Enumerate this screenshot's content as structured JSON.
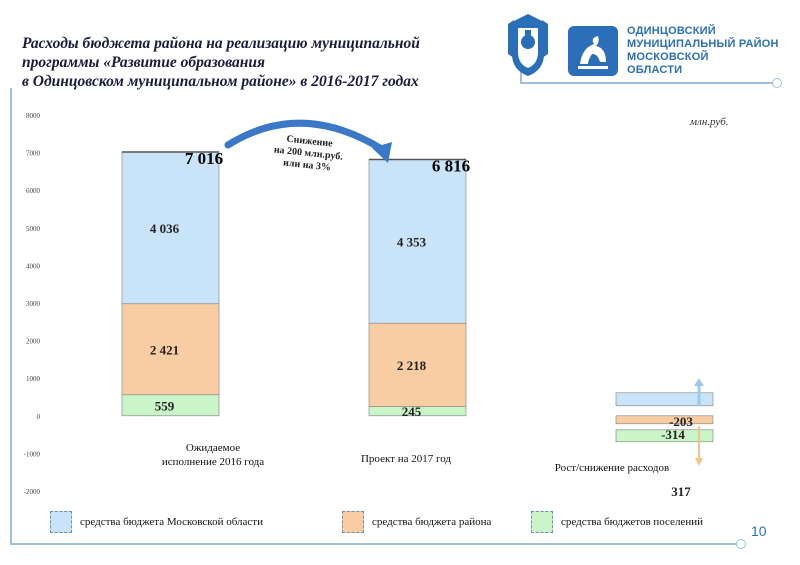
{
  "header": {
    "title_lines": [
      "Расходы бюджета района на реализацию муниципальной",
      "программы «Развитие образования",
      "в Одинцовском муниципальном районе» в 2016-2017 годах"
    ],
    "org_lines": [
      "ОДИНЦОВСКИЙ",
      "МУНИЦИПАЛЬНЫЙ РАЙОН",
      "МОСКОВСКОЙ",
      "ОБЛАСТИ"
    ]
  },
  "unit_label": "млн.руб.",
  "page_number": "10",
  "change_note": [
    "Снижение",
    "на 200 млн.руб.",
    "или на 3%"
  ],
  "colors": {
    "moscow_region": "#c9e4f8",
    "district": "#f9cda3",
    "settlements": "#c9f5c9",
    "accent_blue": "#2a6fb8",
    "arrow_blue": "#3c78c8"
  },
  "chart_data": {
    "type": "bar",
    "stacked": true,
    "categories": [
      "Ожидаемое исполнение 2016 года",
      "Проект на 2017 год",
      "Рост/снижение расходов"
    ],
    "category_label_lines": [
      [
        "Ожидаемое",
        "исполнение 2016 года"
      ],
      [
        "Проект на 2017 год"
      ],
      [
        "Рост/снижение расходов"
      ]
    ],
    "series": [
      {
        "name": "средства бюджетов поселений",
        "values": [
          559,
          245,
          -314
        ],
        "labels": [
          "559",
          "245",
          "-314"
        ],
        "color": "#c9f5c9"
      },
      {
        "name": "средства бюджета района",
        "values": [
          2421,
          2218,
          -203
        ],
        "labels": [
          "2 421",
          "2 218",
          "-203"
        ],
        "color": "#f9cda3"
      },
      {
        "name": "средства бюджета Московской области",
        "values": [
          4036,
          4353,
          317
        ],
        "labels": [
          "4 036",
          "4 353",
          "317"
        ],
        "color": "#c9e4f8"
      }
    ],
    "totals": [
      7016,
      6816
    ],
    "total_labels": [
      "7 016",
      "6 816"
    ],
    "ylim": [
      -2000,
      8000
    ],
    "yticks": [
      -2000,
      -1000,
      0,
      1000,
      2000,
      3000,
      4000,
      5000,
      6000,
      7000,
      8000
    ],
    "legend_position": "bottom",
    "grid": false
  }
}
